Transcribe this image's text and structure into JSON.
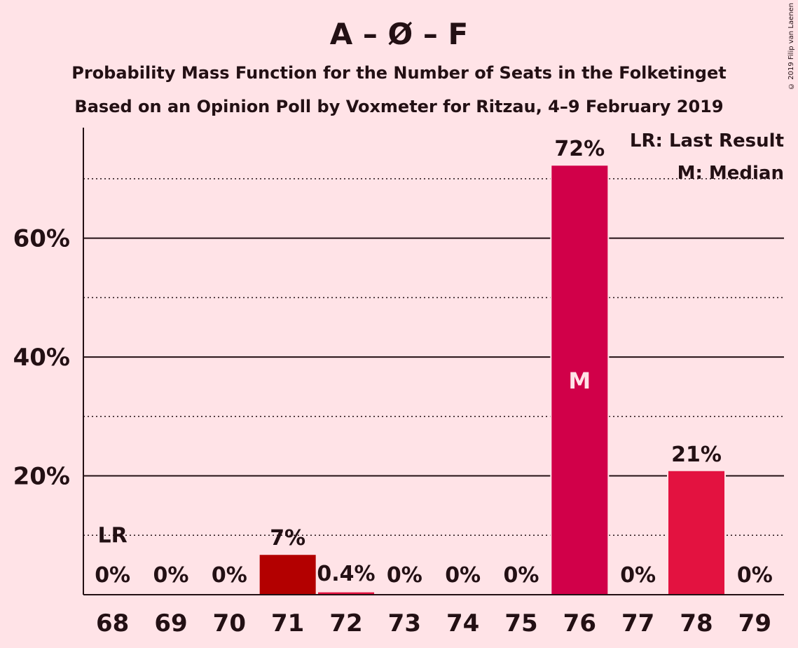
{
  "title": "A – Ø – F",
  "subtitle": "Probability Mass Function for the Number of Seats in the Folketinget",
  "subtitle2": "Based on an Opinion Poll by Voxmeter for Ritzau, 4–9 February 2019",
  "copyright": "© 2019 Filip van Laenen",
  "legend": {
    "last_result": "LR: Last Result",
    "median": "M: Median"
  },
  "colors": {
    "background": "#FFE3E7",
    "bar_71": "#B30000",
    "bar_median": "#D10049",
    "bar_default": "#E31240",
    "text": "#231014"
  },
  "chart_data": {
    "type": "bar",
    "categories": [
      "68",
      "69",
      "70",
      "71",
      "72",
      "73",
      "74",
      "75",
      "76",
      "77",
      "78",
      "79"
    ],
    "values": [
      0,
      0,
      0,
      6.7,
      0.4,
      0,
      0,
      0,
      72.2,
      0,
      20.8,
      0
    ],
    "value_labels": [
      "0%",
      "0%",
      "0%",
      "7%",
      "0.4%",
      "0%",
      "0%",
      "0%",
      "72%",
      "0%",
      "21%",
      "0%"
    ],
    "bar_colors": [
      "#E31240",
      "#E31240",
      "#E31240",
      "#B30000",
      "#E31240",
      "#E31240",
      "#E31240",
      "#E31240",
      "#D10049",
      "#E31240",
      "#E31240",
      "#E31240"
    ],
    "ylim": [
      0,
      78.6
    ],
    "yticks": [
      20,
      40,
      60
    ],
    "ytick_labels": [
      "20%",
      "40%",
      "60%"
    ],
    "minor_gridlines": [
      10,
      30,
      50,
      70
    ],
    "last_result": {
      "category": "68",
      "label": "LR"
    },
    "median": {
      "category": "76",
      "label": "M"
    },
    "legend_position": "top-right"
  }
}
